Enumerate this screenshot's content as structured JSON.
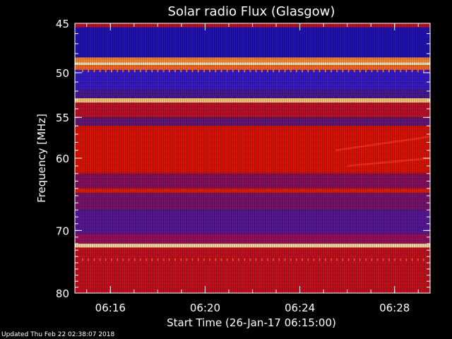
{
  "chart_data": {
    "type": "heatmap",
    "title": "Solar radio Flux (Glasgow)",
    "xlabel": "Start Time (26-Jan-17 06:15:00)",
    "ylabel": "Frequency [MHz]",
    "x_unit": "UT time (minutes from 06:15)",
    "xlim": [
      -0.5,
      14.5
    ],
    "ylim": [
      45,
      80
    ],
    "y_scale": "log",
    "y_reversed": true,
    "x_ticks": [
      {
        "value": 1,
        "label": "06:16"
      },
      {
        "value": 5,
        "label": "06:20"
      },
      {
        "value": 9,
        "label": "06:24"
      },
      {
        "value": 13,
        "label": "06:28"
      }
    ],
    "y_ticks": [
      {
        "value": 45,
        "label": "45"
      },
      {
        "value": 50,
        "label": "50"
      },
      {
        "value": 55,
        "label": "55"
      },
      {
        "value": 60,
        "label": "60"
      },
      {
        "value": 70,
        "label": "70"
      },
      {
        "value": 80,
        "label": "80"
      }
    ],
    "colormap": [
      "#1a0066",
      "#3a14c8",
      "#6a1aa0",
      "#c0102a",
      "#e81c00",
      "#ff8040",
      "#ffe8b0"
    ],
    "bands": [
      {
        "from": 45.0,
        "to": 45.4,
        "color": "#c0102a"
      },
      {
        "from": 45.4,
        "to": 48.4,
        "color": "#2214b8"
      },
      {
        "from": 48.4,
        "to": 48.9,
        "color": "#ff8a3a"
      },
      {
        "from": 48.9,
        "to": 49.2,
        "color": "#ffe8b0"
      },
      {
        "from": 49.2,
        "to": 49.7,
        "color": "#ff6a20"
      },
      {
        "from": 49.7,
        "to": 51.8,
        "color": "#3a1ccc"
      },
      {
        "from": 51.8,
        "to": 52.8,
        "color": "#4a1a9a"
      },
      {
        "from": 52.8,
        "to": 53.3,
        "color": "#ffd27a"
      },
      {
        "from": 53.3,
        "to": 55.0,
        "color": "#c0102a"
      },
      {
        "from": 55.0,
        "to": 56.0,
        "color": "#6a1878"
      },
      {
        "from": 56.0,
        "to": 62.0,
        "color": "#e01400"
      },
      {
        "from": 62.0,
        "to": 64.0,
        "color": "#8a1060"
      },
      {
        "from": 64.0,
        "to": 64.6,
        "color": "#e81c00"
      },
      {
        "from": 64.6,
        "to": 67.0,
        "color": "#7a1470"
      },
      {
        "from": 67.0,
        "to": 70.5,
        "color": "#5a189a"
      },
      {
        "from": 70.5,
        "to": 72.0,
        "color": "#9a1060"
      },
      {
        "from": 72.0,
        "to": 72.6,
        "color": "#ffe0a0"
      },
      {
        "from": 72.6,
        "to": 80.0,
        "color": "#c81020"
      }
    ],
    "features": [
      {
        "type": "burst",
        "t_start": 10.5,
        "t_end": 14.5,
        "f_start": 59.0,
        "f_end": 57.3,
        "color": "#ff3020"
      },
      {
        "type": "burst",
        "t_start": 11.0,
        "t_end": 14.5,
        "f_start": 61.0,
        "f_end": 60.0,
        "color": "#ff3020"
      },
      {
        "type": "dot_row",
        "freq": 74.5,
        "color": "#ff5020"
      },
      {
        "type": "dot_row",
        "freq": 49.8,
        "color": "#ff7a30"
      }
    ]
  },
  "footer": {
    "updated_text": "Updated Thu Feb 22 02:38:07 2018"
  }
}
